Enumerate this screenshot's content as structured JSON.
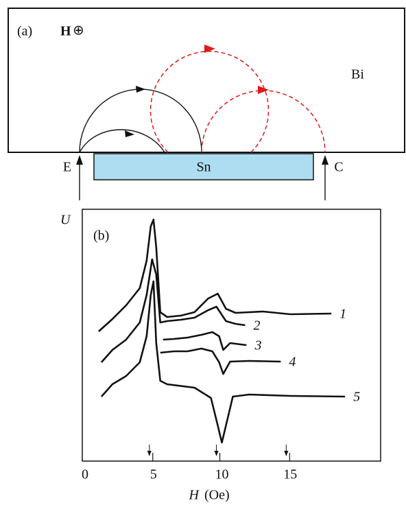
{
  "panel_a": {
    "label": "(a)",
    "field_symbol": "H",
    "field_direction": "⊕",
    "bulk_label": "Bi",
    "film_label": "Sn",
    "emitter_label": "E",
    "collector_label": "C"
  },
  "chart_data": {
    "type": "line",
    "panel_label": "(b)",
    "y_label": "U",
    "x_label": "H",
    "x_unit": "(Oe)",
    "xlim": [
      -0.2,
      21.6
    ],
    "xticks": [
      0,
      5,
      10,
      15
    ],
    "arrow_markers": [
      4.7,
      9.6,
      14.7
    ],
    "series": [
      {
        "name": "1",
        "color": "#111111",
        "x": [
          1,
          2,
          3,
          4,
          4.5,
          4.8,
          5,
          5.2,
          5.5,
          6,
          7,
          8,
          9,
          9.7,
          10.3,
          11,
          13,
          15,
          18
        ],
        "values": [
          189,
          207,
          227,
          252,
          292,
          342,
          352,
          312,
          217,
          210,
          212,
          217,
          237,
          244,
          222,
          216,
          218,
          214,
          215
        ]
      },
      {
        "name": "2",
        "color": "#111111",
        "x": [
          1.2,
          2,
          3,
          4,
          4.5,
          4.9,
          5.2,
          5.5,
          6,
          7,
          8,
          9,
          9.6,
          10.3,
          11,
          11.7
        ],
        "values": [
          144,
          162,
          177,
          202,
          242,
          294,
          272,
          202,
          204,
          206,
          209,
          220,
          225,
          204,
          200,
          198
        ]
      },
      {
        "name": "3",
        "color": "#111111",
        "x": [
          5.7,
          6.5,
          7.5,
          8.5,
          9.3,
          9.8,
          10.1,
          10.6,
          11.8
        ],
        "values": [
          177,
          178,
          180,
          184,
          188,
          182,
          162,
          172,
          169
        ]
      },
      {
        "name": "4",
        "color": "#111111",
        "x": [
          5.5,
          6.5,
          7.5,
          8.5,
          9.3,
          9.8,
          10.1,
          10.6,
          12,
          14.3
        ],
        "values": [
          158,
          160,
          160,
          164,
          160,
          144,
          127,
          145,
          146,
          145
        ]
      },
      {
        "name": "5",
        "color": "#111111",
        "x": [
          1.2,
          2,
          3,
          4,
          4.5,
          4.8,
          5,
          5.2,
          5.5,
          6,
          8,
          9.2,
          9.7,
          10,
          10.3,
          10.8,
          12,
          15,
          19
        ],
        "values": [
          94,
          112,
          124,
          144,
          182,
          242,
          262,
          172,
          117,
          112,
          107,
          92,
          52,
          27,
          52,
          94,
          97,
          95,
          94
        ]
      }
    ]
  }
}
